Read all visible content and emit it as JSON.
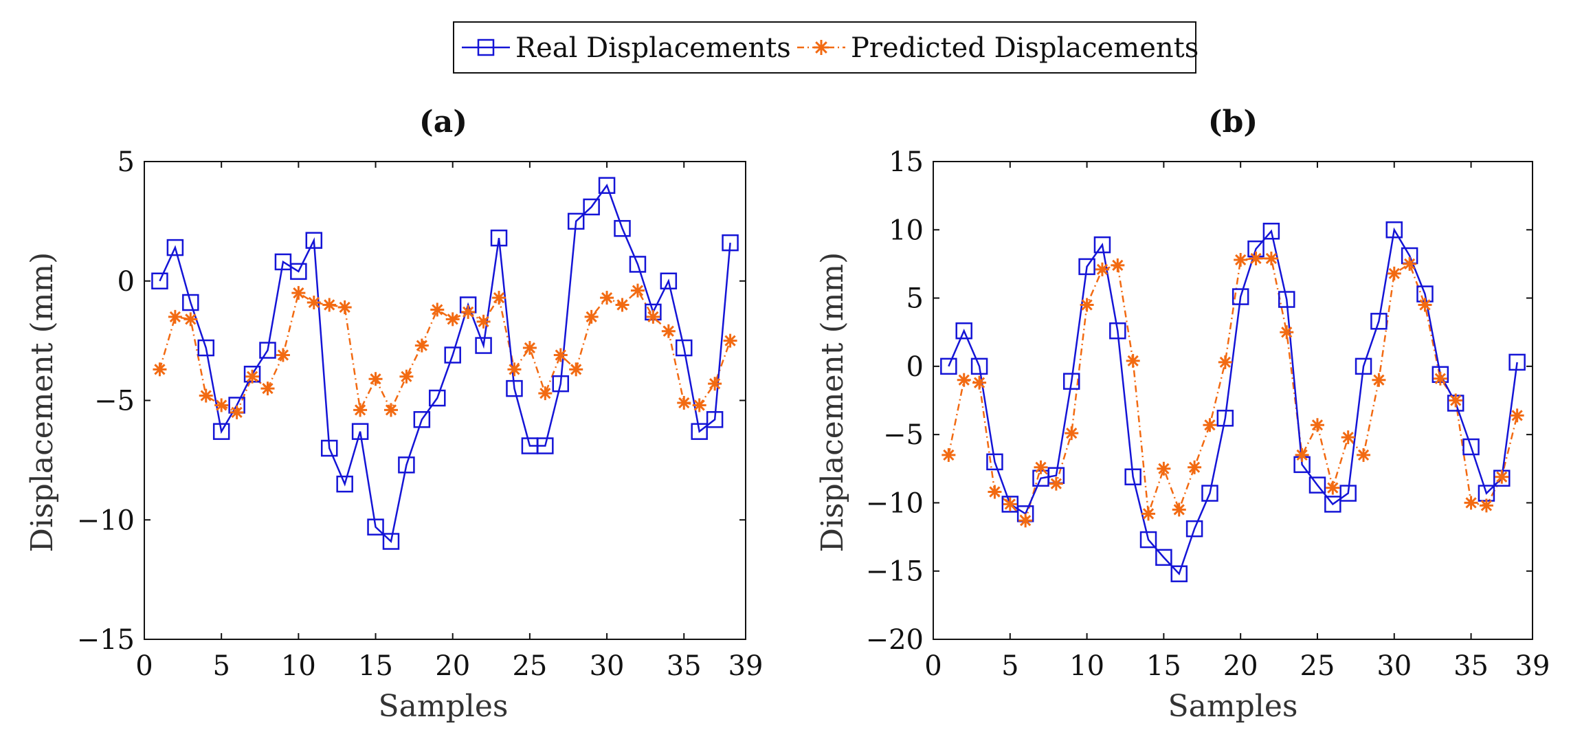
{
  "legend": {
    "real_label": "Real Displacements",
    "pred_label": "Predicted Displacements",
    "real_color": "#1414d6",
    "pred_color": "#f26a12"
  },
  "chart_data": [
    {
      "type": "line",
      "title": "(a)",
      "xlabel": "Samples",
      "ylabel": "Displacement (mm)",
      "xlim": [
        0,
        39
      ],
      "ylim": [
        -15,
        5
      ],
      "xticks": [
        0,
        5,
        10,
        15,
        20,
        25,
        30,
        35,
        39
      ],
      "yticks": [
        5,
        0,
        -5,
        -10,
        -15
      ],
      "ytick_labels": [
        "5",
        "0",
        "−5",
        "−10",
        "−15"
      ],
      "x": [
        1,
        2,
        3,
        4,
        5,
        6,
        7,
        8,
        9,
        10,
        11,
        12,
        13,
        14,
        15,
        16,
        17,
        18,
        19,
        20,
        21,
        22,
        23,
        24,
        25,
        26,
        27,
        28,
        29,
        30,
        31,
        32,
        33,
        34,
        35,
        36,
        37,
        38
      ],
      "series": [
        {
          "name": "Real Displacements",
          "values": [
            0,
            1.4,
            -0.9,
            -2.8,
            -6.3,
            -5.2,
            -3.9,
            -2.9,
            0.8,
            0.4,
            1.7,
            -7.0,
            -8.5,
            -6.3,
            -10.3,
            -10.9,
            -7.7,
            -5.8,
            -4.9,
            -3.1,
            -1.0,
            -2.7,
            1.8,
            -4.5,
            -6.9,
            -6.9,
            -4.3,
            2.5,
            3.1,
            4.0,
            2.2,
            0.7,
            -1.3,
            0,
            -2.8,
            -6.3,
            -5.8,
            1.6
          ]
        },
        {
          "name": "Predicted Displacements",
          "values": [
            -3.7,
            -1.5,
            -1.6,
            -4.8,
            -5.2,
            -5.5,
            -4.0,
            -4.5,
            -3.1,
            -0.5,
            -0.9,
            -1.0,
            -1.1,
            -5.4,
            -4.1,
            -5.4,
            -4.0,
            -2.7,
            -1.2,
            -1.6,
            -1.3,
            -1.7,
            -0.7,
            -3.7,
            -2.8,
            -4.7,
            -3.1,
            -3.7,
            -1.5,
            -0.7,
            -1.0,
            -0.4,
            -1.5,
            -2.1,
            -5.1,
            -5.2,
            -4.3,
            -2.5
          ]
        }
      ]
    },
    {
      "type": "line",
      "title": "(b)",
      "xlabel": "Samples",
      "ylabel": "Displacement (mm)",
      "xlim": [
        0,
        39
      ],
      "ylim": [
        -20,
        15
      ],
      "xticks": [
        0,
        5,
        10,
        15,
        20,
        25,
        30,
        35,
        39
      ],
      "yticks": [
        15,
        10,
        5,
        0,
        -5,
        -10,
        -15,
        -20
      ],
      "ytick_labels": [
        "15",
        "10",
        "5",
        "0",
        "−5",
        "−10",
        "−15",
        "−20"
      ],
      "x": [
        1,
        2,
        3,
        4,
        5,
        6,
        7,
        8,
        9,
        10,
        11,
        12,
        13,
        14,
        15,
        16,
        17,
        18,
        19,
        20,
        21,
        22,
        23,
        24,
        25,
        26,
        27,
        28,
        29,
        30,
        31,
        32,
        33,
        34,
        35,
        36,
        37,
        38
      ],
      "series": [
        {
          "name": "Real Displacements",
          "values": [
            0,
            2.6,
            0,
            -7.0,
            -10.1,
            -10.8,
            -8.2,
            -8.0,
            -1.1,
            7.3,
            8.9,
            2.6,
            -8.1,
            -12.7,
            -14.0,
            -15.2,
            -11.9,
            -9.3,
            -3.8,
            5.1,
            8.6,
            9.9,
            4.9,
            -7.2,
            -8.7,
            -10.1,
            -9.3,
            0,
            3.3,
            10.0,
            8.1,
            5.3,
            -0.6,
            -2.7,
            -5.9,
            -9.3,
            -8.2,
            0.3
          ]
        },
        {
          "name": "Predicted Displacements",
          "values": [
            -6.5,
            -1.0,
            -1.2,
            -9.2,
            -10.1,
            -11.3,
            -7.4,
            -8.6,
            -4.9,
            4.5,
            7.1,
            7.4,
            0.4,
            -10.8,
            -7.5,
            -10.5,
            -7.4,
            -4.3,
            0.3,
            7.8,
            7.9,
            7.9,
            2.5,
            -6.5,
            -4.3,
            -8.9,
            -5.2,
            -6.5,
            -1.0,
            6.8,
            7.5,
            4.5,
            -0.9,
            -2.5,
            -10.0,
            -10.2,
            -8.1,
            -3.6
          ]
        }
      ]
    }
  ]
}
